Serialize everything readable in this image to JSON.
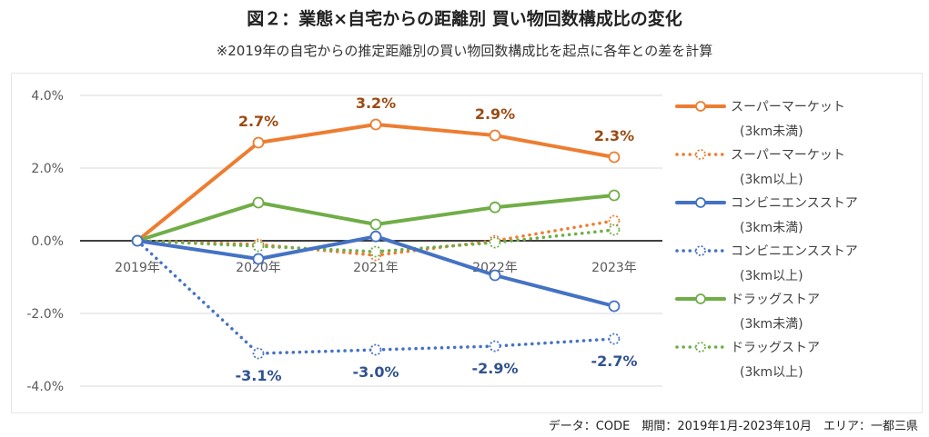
{
  "title": "図２：業態×自宅からの距離別 買い物回数構成比の変化",
  "subtitle": "※2019年の自宅からの推定距離別の買い物回数構成比を起点に各年との差を計算",
  "footer": "データ：CODE　期間：2019年1月-2023年10月　エリア：一都三県",
  "chart_data": {
    "type": "line",
    "categories": [
      "2019年",
      "2020年",
      "2021年",
      "2022年",
      "2023年"
    ],
    "ylim": [
      -4.0,
      4.0
    ],
    "yticks": [
      "4.0%",
      "2.0%",
      "0.0%",
      "-2.0%",
      "-4.0%"
    ],
    "ytick_values": [
      4.0,
      2.0,
      0.0,
      -2.0,
      -4.0
    ],
    "grid": true,
    "legend_position": "right",
    "series": [
      {
        "name": "スーパーマーケット",
        "note": "(3km未満)",
        "color": "#ED7D31",
        "style": "solid",
        "values": [
          0.0,
          2.7,
          3.2,
          2.9,
          2.3
        ],
        "labels": [
          "",
          "2.7%",
          "3.2%",
          "2.9%",
          "2.3%"
        ]
      },
      {
        "name": "スーパーマーケット",
        "note": "(3km以上)",
        "color": "#ED7D31",
        "style": "dotted",
        "values": [
          0.0,
          -0.1,
          -0.4,
          0.0,
          0.55
        ],
        "labels": [
          "",
          "",
          "",
          "",
          ""
        ]
      },
      {
        "name": "コンビニエンスストア",
        "note": "(3km未満)",
        "color": "#4472C4",
        "style": "solid",
        "values": [
          0.0,
          -0.5,
          0.12,
          -0.95,
          -1.8
        ],
        "labels": [
          "",
          "",
          "",
          "",
          ""
        ]
      },
      {
        "name": "コンビニエンスストア",
        "note": "(3km以上)",
        "color": "#4472C4",
        "style": "dotted",
        "values": [
          0.0,
          -3.1,
          -3.0,
          -2.9,
          -2.7
        ],
        "labels": [
          "",
          "-3.1%",
          "-3.0%",
          "-2.9%",
          "-2.7%"
        ]
      },
      {
        "name": "ドラッグストア",
        "note": "(3km未満)",
        "color": "#70AD47",
        "style": "solid",
        "values": [
          0.0,
          1.05,
          0.45,
          0.92,
          1.25
        ],
        "labels": [
          "",
          "",
          "",
          "",
          ""
        ]
      },
      {
        "name": "ドラッグストア",
        "note": "(3km以上)",
        "color": "#70AD47",
        "style": "dotted",
        "values": [
          0.0,
          -0.15,
          -0.3,
          -0.05,
          0.3
        ],
        "labels": [
          "",
          "",
          "",
          "",
          ""
        ]
      }
    ]
  }
}
